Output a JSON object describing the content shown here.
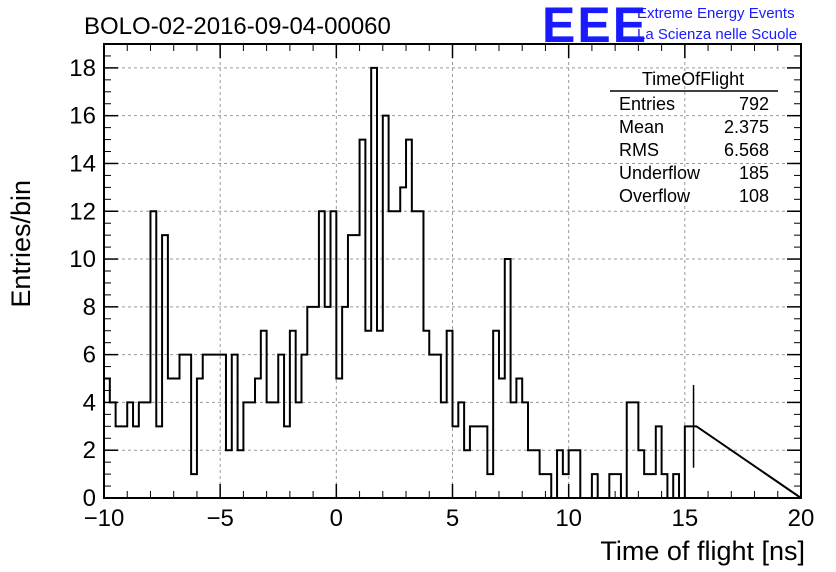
{
  "chart_data": {
    "type": "histogram",
    "title": "BOLO-02-2016-09-04-00060",
    "xlabel": "Time of flight [ns]",
    "ylabel": "Entries/bin",
    "xlim": [
      -10,
      20
    ],
    "ylim": [
      0,
      19
    ],
    "bin_width": 0.25,
    "x_ticks": [
      "−10",
      "−5",
      "0",
      "5",
      "10",
      "15",
      "20"
    ],
    "y_ticks": [
      "0",
      "2",
      "4",
      "6",
      "8",
      "10",
      "12",
      "14",
      "16",
      "18"
    ],
    "grid": true,
    "values": [
      5,
      4,
      3,
      3,
      4,
      3,
      4,
      4,
      12,
      3,
      11,
      5,
      5,
      6,
      6,
      1,
      5,
      6,
      6,
      6,
      6,
      2,
      6,
      2,
      4,
      4,
      5,
      7,
      4,
      4,
      6,
      3,
      7,
      4,
      6,
      8,
      8,
      12,
      8,
      12,
      5,
      8,
      11,
      11,
      15,
      7,
      18,
      7,
      16,
      12,
      12,
      13,
      15,
      12,
      12,
      7,
      6,
      6,
      4,
      7,
      3,
      4,
      2,
      3,
      3,
      3,
      1,
      7,
      5,
      10,
      4,
      5,
      4,
      2,
      2,
      1,
      1,
      0,
      2,
      1,
      2,
      2,
      0,
      0,
      1,
      0,
      0,
      1,
      1,
      0,
      4,
      4,
      2,
      1,
      1,
      3,
      1,
      0,
      1,
      0,
      3,
      3
    ]
  },
  "stats_box": {
    "title": "TimeOfFlight",
    "rows": [
      {
        "label": "Entries",
        "value": "792"
      },
      {
        "label": "Mean",
        "value": "2.375"
      },
      {
        "label": "RMS",
        "value": "6.568"
      },
      {
        "label": "Underflow",
        "value": "185"
      },
      {
        "label": "Overflow",
        "value": "108"
      }
    ]
  },
  "logo": {
    "mark": "EEE",
    "line1": "Extreme Energy Events",
    "line2": "La Scienza nelle Scuole",
    "color": "#1a1aff"
  }
}
